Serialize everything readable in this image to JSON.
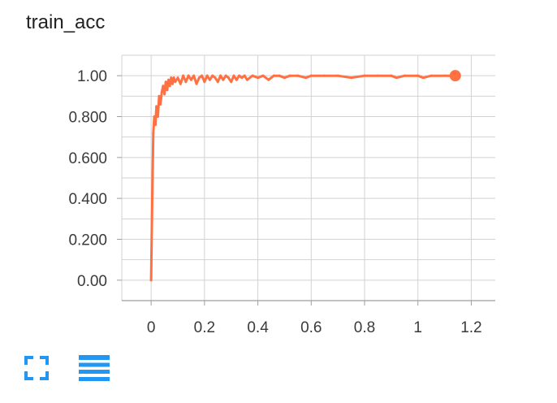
{
  "card": {
    "title": "train_acc",
    "toolbar": {
      "fullscreen_icon": "fullscreen-icon",
      "data_icon": "list-lines-icon",
      "icon_color": "#2196f3"
    }
  },
  "chart_data": {
    "type": "line",
    "title": "train_acc",
    "xlabel": "",
    "ylabel": "",
    "xlim": [
      -0.11,
      1.29
    ],
    "ylim": [
      -0.1,
      1.1
    ],
    "x_ticks": [
      0,
      0.2,
      0.4,
      0.6,
      0.8,
      1,
      1.2
    ],
    "x_tick_labels": [
      "0",
      "0.2",
      "0.4",
      "0.6",
      "0.8",
      "1",
      "1.2"
    ],
    "y_ticks": [
      0,
      0.2,
      0.4,
      0.6,
      0.8,
      1.0
    ],
    "y_tick_labels": [
      "0.00",
      "0.200",
      "0.400",
      "0.600",
      "0.800",
      "1.00"
    ],
    "grid": true,
    "legend": "none",
    "series": [
      {
        "color": "#ff7043",
        "x": [
          0.0,
          0.004,
          0.008,
          0.012,
          0.016,
          0.02,
          0.025,
          0.03,
          0.035,
          0.04,
          0.045,
          0.05,
          0.055,
          0.06,
          0.065,
          0.07,
          0.075,
          0.08,
          0.085,
          0.09,
          0.1,
          0.11,
          0.12,
          0.13,
          0.14,
          0.15,
          0.16,
          0.17,
          0.18,
          0.19,
          0.2,
          0.21,
          0.22,
          0.23,
          0.24,
          0.25,
          0.26,
          0.27,
          0.28,
          0.29,
          0.3,
          0.31,
          0.32,
          0.33,
          0.34,
          0.35,
          0.36,
          0.38,
          0.4,
          0.42,
          0.44,
          0.46,
          0.48,
          0.5,
          0.52,
          0.55,
          0.58,
          0.6,
          0.65,
          0.7,
          0.75,
          0.8,
          0.85,
          0.9,
          0.92,
          0.95,
          1.0,
          1.02,
          1.05,
          1.1,
          1.14
        ],
        "y": [
          0.0,
          0.4,
          0.72,
          0.8,
          0.76,
          0.85,
          0.8,
          0.9,
          0.86,
          0.92,
          0.95,
          0.91,
          0.97,
          0.93,
          0.98,
          0.95,
          0.99,
          0.96,
          0.99,
          0.97,
          0.99,
          0.96,
          1.0,
          0.97,
          1.0,
          0.98,
          1.0,
          0.96,
          0.99,
          1.0,
          0.97,
          1.0,
          0.98,
          1.0,
          0.99,
          0.97,
          1.0,
          0.98,
          1.0,
          0.99,
          0.97,
          1.0,
          0.98,
          1.0,
          0.99,
          1.0,
          0.98,
          1.0,
          0.99,
          1.0,
          0.98,
          1.0,
          1.0,
          0.99,
          1.0,
          1.0,
          0.99,
          1.0,
          1.0,
          1.0,
          0.99,
          1.0,
          1.0,
          1.0,
          0.99,
          1.0,
          1.0,
          0.99,
          1.0,
          1.0,
          1.0
        ]
      }
    ]
  }
}
